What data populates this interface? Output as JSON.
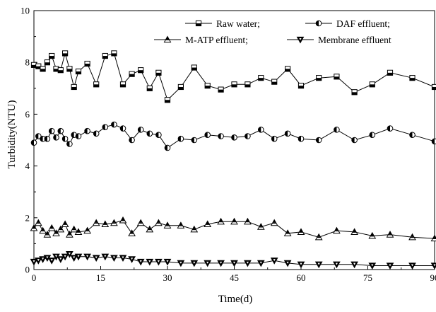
{
  "chart_data": {
    "type": "line",
    "title": "",
    "xlabel": "Time(d)",
    "ylabel": "Turbidity(NTU)",
    "xlim": [
      0,
      90
    ],
    "ylim": [
      0,
      10
    ],
    "x_ticks": [
      0,
      15,
      30,
      45,
      60,
      75,
      90
    ],
    "y_ticks": [
      0,
      2,
      4,
      6,
      8,
      10
    ],
    "grid": false,
    "legend_placement": "top-right",
    "series": [
      {
        "name": "Raw water;",
        "marker": "square-half",
        "x": [
          0,
          1,
          2,
          3,
          4,
          5,
          6,
          7,
          8,
          9,
          10,
          12,
          14,
          16,
          18,
          20,
          22,
          24,
          26,
          28,
          30,
          33,
          36,
          39,
          42,
          45,
          48,
          51,
          54,
          57,
          60,
          64,
          68,
          72,
          76,
          80,
          85,
          90
        ],
        "values": [
          7.9,
          7.85,
          7.75,
          8.0,
          8.25,
          7.75,
          7.7,
          8.35,
          7.75,
          7.05,
          7.65,
          7.95,
          7.15,
          8.25,
          8.35,
          7.15,
          7.55,
          7.7,
          7.0,
          7.6,
          6.55,
          7.05,
          7.8,
          7.1,
          6.95,
          7.15,
          7.15,
          7.4,
          7.25,
          7.75,
          7.1,
          7.4,
          7.45,
          6.85,
          7.15,
          7.6,
          7.4,
          7.05
        ]
      },
      {
        "name": "DAF effluent;",
        "marker": "circle-half",
        "x": [
          0,
          1,
          2,
          3,
          4,
          5,
          6,
          7,
          8,
          9,
          10,
          12,
          14,
          16,
          18,
          20,
          22,
          24,
          26,
          28,
          30,
          33,
          36,
          39,
          42,
          45,
          48,
          51,
          54,
          57,
          60,
          64,
          68,
          72,
          76,
          80,
          85,
          90
        ],
        "values": [
          4.9,
          5.15,
          5.05,
          5.05,
          5.35,
          5.1,
          5.35,
          5.05,
          4.85,
          5.2,
          5.15,
          5.35,
          5.25,
          5.5,
          5.6,
          5.45,
          5.0,
          5.4,
          5.25,
          5.2,
          4.7,
          5.05,
          5.0,
          5.2,
          5.15,
          5.1,
          5.15,
          5.4,
          5.05,
          5.25,
          5.05,
          5.0,
          5.4,
          5.0,
          5.2,
          5.45,
          5.2,
          4.95
        ]
      },
      {
        "name": "M-ATP effluent;",
        "marker": "triangle-up",
        "x": [
          0,
          1,
          2,
          3,
          4,
          5,
          6,
          7,
          8,
          9,
          10,
          12,
          14,
          16,
          18,
          20,
          22,
          24,
          26,
          28,
          30,
          33,
          36,
          39,
          42,
          45,
          48,
          51,
          54,
          57,
          60,
          64,
          68,
          72,
          76,
          80,
          85,
          90
        ],
        "values": [
          1.6,
          1.8,
          1.5,
          1.35,
          1.6,
          1.4,
          1.55,
          1.75,
          1.35,
          1.55,
          1.45,
          1.5,
          1.8,
          1.75,
          1.8,
          1.9,
          1.4,
          1.8,
          1.55,
          1.8,
          1.7,
          1.7,
          1.55,
          1.75,
          1.85,
          1.85,
          1.85,
          1.65,
          1.8,
          1.4,
          1.45,
          1.25,
          1.5,
          1.45,
          1.3,
          1.35,
          1.25,
          1.2
        ]
      },
      {
        "name": "Membrane effluent",
        "marker": "triangle-down",
        "x": [
          0,
          1,
          2,
          3,
          4,
          5,
          6,
          7,
          8,
          9,
          10,
          12,
          14,
          16,
          18,
          20,
          22,
          24,
          26,
          28,
          30,
          33,
          36,
          39,
          42,
          45,
          48,
          51,
          54,
          57,
          60,
          64,
          68,
          72,
          76,
          80,
          85,
          90
        ],
        "values": [
          0.3,
          0.35,
          0.4,
          0.45,
          0.35,
          0.5,
          0.4,
          0.5,
          0.6,
          0.45,
          0.5,
          0.5,
          0.45,
          0.5,
          0.45,
          0.45,
          0.4,
          0.3,
          0.3,
          0.3,
          0.3,
          0.25,
          0.25,
          0.25,
          0.25,
          0.25,
          0.25,
          0.25,
          0.35,
          0.25,
          0.2,
          0.2,
          0.2,
          0.2,
          0.15,
          0.15,
          0.15,
          0.15
        ]
      }
    ]
  }
}
